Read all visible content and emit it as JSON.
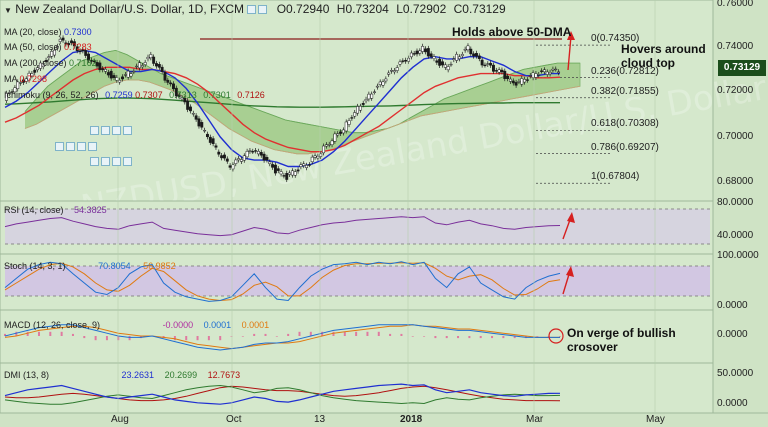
{
  "header": {
    "pair": "New Zealand Dollar/U.S. Dollar, 1D, FXCM",
    "ohlc": [
      {
        "label": "O",
        "value": "0.72940"
      },
      {
        "label": "H",
        "value": "0.73204"
      },
      {
        "label": "L",
        "value": "0.72902"
      },
      {
        "label": "C",
        "value": "0.73129"
      }
    ]
  },
  "indicators": {
    "ma20": {
      "label": "MA (20, close)",
      "value": "0.7300",
      "color": "#1f2fd1"
    },
    "ma50": {
      "label": "MA (50, close)",
      "value": "0.7283",
      "color": "#e03030"
    },
    "ma200": {
      "label": "MA (200, close)",
      "value": "0.7162",
      "color": "#2f7a2f"
    },
    "ma_other": {
      "label": "MA",
      "value": "0.7298"
    },
    "ichimoku": {
      "label": "Ichimoku (9, 26, 52, 26)",
      "values": [
        "0.7259",
        "0.7307",
        "0.7313",
        "0.7301",
        "0.7126"
      ]
    }
  },
  "price_axis": {
    "ticks": [
      "0.76000",
      "0.74000",
      "0.72000",
      "0.70000",
      "0.68000"
    ],
    "current": "0.73129",
    "current_color": "#1b4d1b"
  },
  "fib_levels": [
    {
      "label": "0(0.74350)",
      "value": 0.7435
    },
    {
      "label": "0.236(0.72812)",
      "value": 0.72812
    },
    {
      "label": "0.382(0.71855)",
      "value": 0.71855
    },
    {
      "label": "0.618(0.70308)",
      "value": 0.70308
    },
    {
      "label": "0.786(0.69207)",
      "value": 0.69207
    },
    {
      "label": "1(0.67804)",
      "value": 0.67804
    }
  ],
  "annotations": {
    "holds": "Holds above 50-DMA",
    "hovers": "Hovers around cloud top",
    "macd_note": "On verge of bullish crosover"
  },
  "watermark": "NZDUSD, New Zealand Dollar/U.S. Dollar",
  "rsi": {
    "label": "RSI (14, close)",
    "value": "54.3825",
    "ticks": [
      "80.0000",
      "40.0000"
    ]
  },
  "stoch": {
    "label": "Stoch (14, 3, 1)",
    "k": "70.8054",
    "d": "56.9852",
    "ticks": [
      "100.0000",
      "0.0000"
    ]
  },
  "macd": {
    "label": "MACD (12, 26, close, 9)",
    "hist": "-0.0000",
    "macd": "0.0001",
    "signal": "0.0001",
    "ticks": [
      "0.0000"
    ]
  },
  "dmi": {
    "label": "DMI (13, 8)",
    "plus": "23.2631",
    "minus": "20.2699",
    "adx": "12.7673",
    "ticks": [
      "50.0000",
      "0.0000"
    ]
  },
  "x_axis": {
    "labels": [
      "Aug",
      "Oct",
      "13",
      "2018",
      "Mar",
      "May"
    ]
  },
  "chart_data": {
    "type": "line",
    "title": "New Zealand Dollar/U.S. Dollar, 1D, FXCM",
    "ylim": [
      0.672,
      0.763
    ],
    "price": {
      "x": [
        0,
        4,
        8,
        12,
        16,
        20,
        24,
        28,
        32,
        36,
        40,
        44,
        48,
        52,
        56,
        60,
        64,
        68,
        72,
        76,
        80,
        84,
        88,
        92,
        96,
        100,
        104,
        108,
        112,
        116,
        120,
        124,
        128,
        132,
        136,
        140,
        144,
        148,
        152,
        156,
        160,
        164,
        168,
        172,
        176,
        180,
        184,
        188,
        192,
        196
      ],
      "close": [
        0.718,
        0.724,
        0.728,
        0.733,
        0.738,
        0.746,
        0.744,
        0.74,
        0.735,
        0.731,
        0.727,
        0.73,
        0.734,
        0.738,
        0.73,
        0.722,
        0.716,
        0.708,
        0.7,
        0.692,
        0.686,
        0.69,
        0.694,
        0.69,
        0.684,
        0.681,
        0.685,
        0.688,
        0.693,
        0.699,
        0.704,
        0.712,
        0.718,
        0.724,
        0.73,
        0.735,
        0.739,
        0.742,
        0.737,
        0.733,
        0.738,
        0.742,
        0.736,
        0.733,
        0.73,
        0.725,
        0.727,
        0.73,
        0.731,
        0.7313
      ]
    },
    "ma20": [
      0.714,
      0.717,
      0.721,
      0.726,
      0.731,
      0.736,
      0.74,
      0.741,
      0.74,
      0.737,
      0.734,
      0.731,
      0.731,
      0.732,
      0.731,
      0.728,
      0.723,
      0.716,
      0.708,
      0.7,
      0.694,
      0.69,
      0.689,
      0.689,
      0.688,
      0.686,
      0.686,
      0.687,
      0.689,
      0.693,
      0.698,
      0.704,
      0.71,
      0.716,
      0.722,
      0.728,
      0.733,
      0.737,
      0.738,
      0.737,
      0.737,
      0.738,
      0.738,
      0.736,
      0.734,
      0.731,
      0.729,
      0.729,
      0.73,
      0.73
    ],
    "ma50": [
      0.707,
      0.709,
      0.712,
      0.715,
      0.719,
      0.723,
      0.727,
      0.73,
      0.732,
      0.733,
      0.733,
      0.733,
      0.732,
      0.732,
      0.731,
      0.73,
      0.728,
      0.725,
      0.721,
      0.716,
      0.711,
      0.706,
      0.702,
      0.699,
      0.697,
      0.695,
      0.694,
      0.693,
      0.693,
      0.694,
      0.696,
      0.699,
      0.702,
      0.705,
      0.709,
      0.713,
      0.717,
      0.721,
      0.724,
      0.726,
      0.728,
      0.729,
      0.73,
      0.73,
      0.73,
      0.729,
      0.729,
      0.728,
      0.728,
      0.7283
    ],
    "ma200": [
      0.7155,
      0.7157,
      0.716,
      0.7163,
      0.7166,
      0.717,
      0.7174,
      0.7178,
      0.7181,
      0.7183,
      0.7184,
      0.7184,
      0.7183,
      0.7181,
      0.7178,
      0.7174,
      0.717,
      0.7166,
      0.7162,
      0.7158,
      0.7154,
      0.715,
      0.7147,
      0.7145,
      0.7143,
      0.7142,
      0.7141,
      0.7141,
      0.7141,
      0.7142,
      0.7143,
      0.7144,
      0.7145,
      0.7146,
      0.7147,
      0.7149,
      0.7151,
      0.7153,
      0.7155,
      0.7157,
      0.7158,
      0.7159,
      0.716,
      0.7161,
      0.7161,
      0.7162,
      0.7162,
      0.7162,
      0.7162,
      0.7162
    ],
    "cloud_top": [
      0.712,
      0.718,
      0.724,
      0.728,
      0.732,
      0.736,
      0.738,
      0.74,
      0.741,
      0.739,
      0.736,
      0.733,
      0.73,
      0.728,
      0.726,
      0.724,
      0.722,
      0.72,
      0.718,
      0.716,
      0.714,
      0.712,
      0.71,
      0.708,
      0.707,
      0.706,
      0.705,
      0.704,
      0.703,
      0.702,
      0.702,
      0.703,
      0.704,
      0.706,
      0.709,
      0.712,
      0.715,
      0.718,
      0.72,
      0.722,
      0.724,
      0.726,
      0.728,
      0.73,
      0.732,
      0.733,
      0.734,
      0.735,
      0.735,
      0.735
    ],
    "cloud_bottom": [
      0.704,
      0.706,
      0.709,
      0.712,
      0.715,
      0.718,
      0.721,
      0.724,
      0.726,
      0.727,
      0.727,
      0.726,
      0.724,
      0.722,
      0.719,
      0.716,
      0.712,
      0.708,
      0.704,
      0.701,
      0.698,
      0.696,
      0.694,
      0.693,
      0.692,
      0.692,
      0.693,
      0.694,
      0.696,
      0.698,
      0.7,
      0.702,
      0.704,
      0.706,
      0.708,
      0.71,
      0.711,
      0.712,
      0.713,
      0.714,
      0.715,
      0.716,
      0.717,
      0.718,
      0.719,
      0.72,
      0.721,
      0.722,
      0.723,
      0.724
    ],
    "rsi": [
      52,
      58,
      62,
      66,
      70,
      72,
      64,
      58,
      52,
      48,
      46,
      54,
      58,
      62,
      48,
      44,
      40,
      36,
      34,
      32,
      34,
      42,
      50,
      46,
      38,
      36,
      44,
      50,
      56,
      60,
      62,
      66,
      68,
      70,
      72,
      74,
      72,
      74,
      60,
      56,
      62,
      66,
      58,
      54,
      48,
      46,
      50,
      52,
      54,
      54.38
    ],
    "stoch_k": [
      40,
      60,
      80,
      90,
      95,
      92,
      70,
      50,
      30,
      25,
      40,
      70,
      85,
      90,
      50,
      30,
      20,
      15,
      10,
      12,
      20,
      45,
      70,
      40,
      15,
      12,
      40,
      65,
      80,
      90,
      92,
      95,
      90,
      95,
      92,
      96,
      90,
      95,
      60,
      40,
      70,
      85,
      50,
      35,
      20,
      15,
      40,
      55,
      65,
      70.8
    ],
    "stoch_d": [
      35,
      50,
      65,
      80,
      90,
      93,
      85,
      70,
      50,
      35,
      32,
      45,
      65,
      82,
      75,
      55,
      35,
      22,
      15,
      12,
      14,
      26,
      45,
      52,
      42,
      22,
      22,
      40,
      62,
      78,
      88,
      92,
      92,
      93,
      93,
      94,
      93,
      94,
      82,
      65,
      57,
      65,
      68,
      57,
      38,
      24,
      25,
      37,
      53,
      57
    ],
    "macd_line": [
      0.0,
      0.2,
      0.4,
      0.6,
      0.7,
      0.8,
      0.8,
      0.6,
      0.4,
      0.2,
      0.0,
      -0.1,
      -0.1,
      0.0,
      -0.2,
      -0.4,
      -0.6,
      -0.8,
      -0.9,
      -1.0,
      -0.9,
      -0.8,
      -0.6,
      -0.5,
      -0.5,
      -0.4,
      -0.2,
      0.0,
      0.2,
      0.4,
      0.5,
      0.6,
      0.7,
      0.8,
      0.8,
      0.8,
      0.8,
      0.7,
      0.6,
      0.5,
      0.4,
      0.4,
      0.3,
      0.2,
      0.1,
      0.0,
      -0.1,
      -0.1,
      -0.1,
      -0.1
    ],
    "macd_signal": [
      -0.1,
      0.0,
      0.2,
      0.4,
      0.5,
      0.6,
      0.7,
      0.7,
      0.6,
      0.4,
      0.2,
      0.1,
      0.0,
      0.0,
      -0.1,
      -0.2,
      -0.4,
      -0.6,
      -0.7,
      -0.8,
      -0.9,
      -0.8,
      -0.7,
      -0.6,
      -0.5,
      -0.5,
      -0.4,
      -0.2,
      0.0,
      0.2,
      0.3,
      0.4,
      0.5,
      0.6,
      0.7,
      0.7,
      0.8,
      0.7,
      0.7,
      0.6,
      0.5,
      0.5,
      0.4,
      0.3,
      0.2,
      0.1,
      0.0,
      -0.1,
      -0.1,
      -0.1
    ],
    "dmi_plus": [
      20,
      24,
      28,
      30,
      32,
      34,
      30,
      26,
      22,
      18,
      16,
      18,
      20,
      22,
      18,
      14,
      12,
      10,
      9,
      8,
      10,
      14,
      18,
      16,
      12,
      11,
      14,
      18,
      22,
      26,
      28,
      30,
      32,
      34,
      35,
      36,
      34,
      35,
      28,
      24,
      26,
      28,
      24,
      22,
      20,
      19,
      21,
      22,
      23,
      23.26
    ],
    "dmi_minus": [
      14,
      12,
      10,
      9,
      8,
      8,
      10,
      13,
      16,
      19,
      21,
      19,
      17,
      16,
      20,
      24,
      28,
      31,
      33,
      34,
      32,
      28,
      24,
      26,
      30,
      31,
      28,
      24,
      20,
      17,
      15,
      13,
      12,
      11,
      10,
      9,
      10,
      9,
      14,
      17,
      15,
      14,
      17,
      19,
      21,
      22,
      21,
      20,
      20,
      20.27
    ],
    "adx": [
      18,
      17,
      17,
      18,
      20,
      22,
      23,
      22,
      20,
      18,
      16,
      14,
      13,
      13,
      14,
      16,
      19,
      23,
      27,
      31,
      33,
      32,
      30,
      28,
      27,
      27,
      26,
      24,
      22,
      20,
      19,
      20,
      22,
      24,
      27,
      30,
      32,
      33,
      31,
      28,
      25,
      22,
      19,
      17,
      15,
      14,
      13,
      13,
      13,
      12.77
    ]
  }
}
